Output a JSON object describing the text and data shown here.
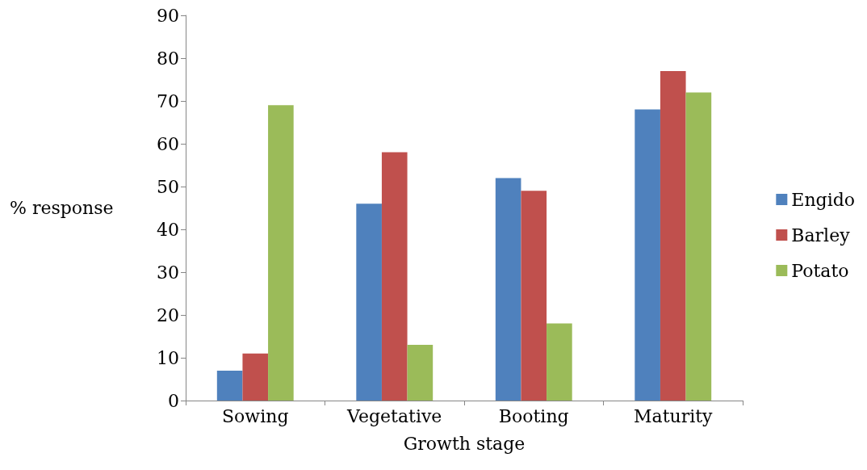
{
  "chart_data": {
    "type": "bar",
    "xlabel": "Growth stage",
    "ylabel": "% response",
    "categories": [
      "Sowing",
      "Vegetative",
      "Booting",
      "Maturity"
    ],
    "series": [
      {
        "name": "Engido",
        "color": "#4f81bd",
        "values": [
          7,
          46,
          52,
          68
        ]
      },
      {
        "name": "Barley",
        "color": "#c0504d",
        "values": [
          11,
          58,
          49,
          77
        ]
      },
      {
        "name": "Potato",
        "color": "#9bbb59",
        "values": [
          69,
          13,
          18,
          72
        ]
      }
    ],
    "ylim": [
      0,
      90
    ],
    "yticks": [
      0,
      10,
      20,
      30,
      40,
      50,
      60,
      70,
      80,
      90
    ],
    "grid": false,
    "legend": "right"
  }
}
